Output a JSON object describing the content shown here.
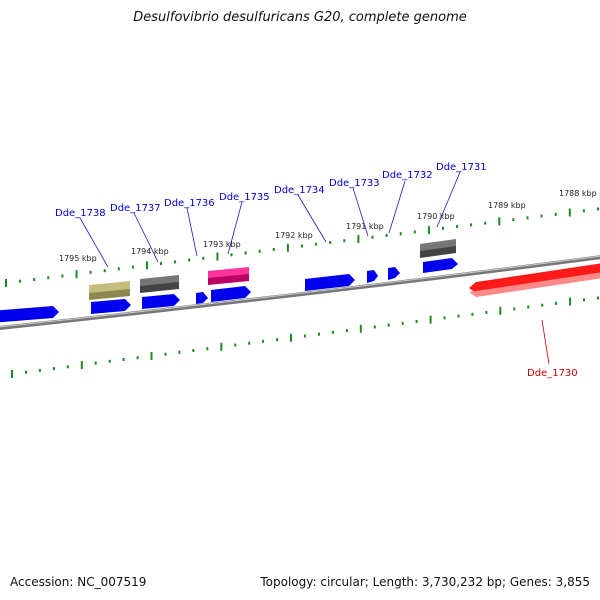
{
  "title": "Desulfovibrio desulfuricans G20, complete genome",
  "footer": {
    "accession": "Accession: NC_007519",
    "summary": "Topology: circular; Length: 3,730,232 bp; Genes: 3,855"
  },
  "colors": {
    "gene_highlight": "#ff0000",
    "gene_forward": "#0000ee",
    "label_text": "#0000cc",
    "ruler_ticks": "#228822",
    "backbone": "#888888",
    "feature_gray": "#666666",
    "feature_olive": "#b5b070",
    "feature_pink": "#ee1188"
  },
  "kbp_labels": [
    "1795 kbp",
    "1794 kbp",
    "1793 kbp",
    "1792 kbp",
    "1791 kbp",
    "1790 kbp",
    "1789 kbp",
    "1788 kbp"
  ],
  "gene_labels": [
    "Dde_1738",
    "Dde_1737",
    "Dde_1736",
    "Dde_1735",
    "Dde_1734",
    "Dde_1733",
    "Dde_1732",
    "Dde_1731",
    "Dde_1730"
  ],
  "highlight_gene": "Dde_1730"
}
